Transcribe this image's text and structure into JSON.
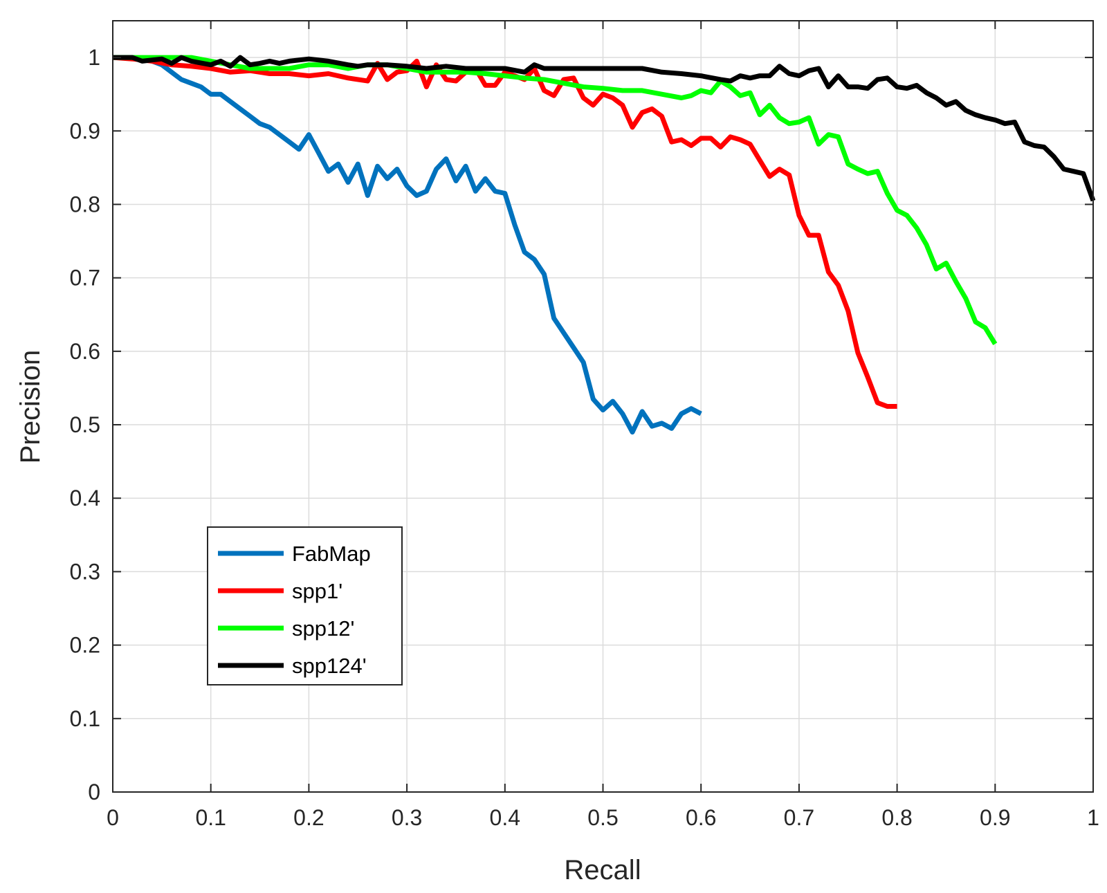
{
  "chart_data": {
    "type": "line",
    "title": "",
    "xlabel": "Recall",
    "ylabel": "Precision",
    "xlim": [
      0,
      1
    ],
    "ylim": [
      0,
      1.05
    ],
    "xticks": [
      0,
      0.1,
      0.2,
      0.3,
      0.4,
      0.5,
      0.6,
      0.7,
      0.8,
      0.9,
      1
    ],
    "xtick_labels": [
      "0",
      "0.1",
      "0.2",
      "0.3",
      "0.4",
      "0.5",
      "0.6",
      "0.7",
      "0.8",
      "0.9",
      "1"
    ],
    "yticks": [
      0,
      0.1,
      0.2,
      0.3,
      0.4,
      0.5,
      0.6,
      0.7,
      0.8,
      0.9,
      1
    ],
    "ytick_labels": [
      "0",
      "0.1",
      "0.2",
      "0.3",
      "0.4",
      "0.5",
      "0.6",
      "0.7",
      "0.8",
      "0.9",
      "1"
    ],
    "grid": true,
    "legend_position": "lower-left",
    "series": [
      {
        "name": "FabMap",
        "color": "#0072BD",
        "x": [
          0,
          0.02,
          0.04,
          0.05,
          0.06,
          0.07,
          0.08,
          0.09,
          0.1,
          0.11,
          0.12,
          0.13,
          0.14,
          0.15,
          0.16,
          0.17,
          0.18,
          0.19,
          0.2,
          0.21,
          0.22,
          0.23,
          0.24,
          0.25,
          0.26,
          0.27,
          0.28,
          0.29,
          0.3,
          0.31,
          0.32,
          0.33,
          0.34,
          0.35,
          0.36,
          0.37,
          0.38,
          0.39,
          0.4,
          0.41,
          0.42,
          0.43,
          0.44,
          0.45,
          0.46,
          0.47,
          0.48,
          0.49,
          0.5,
          0.51,
          0.52,
          0.53,
          0.54,
          0.55,
          0.56,
          0.57,
          0.58,
          0.59,
          0.6
        ],
        "y": [
          1.0,
          1.0,
          0.995,
          0.99,
          0.98,
          0.97,
          0.965,
          0.96,
          0.95,
          0.95,
          0.94,
          0.93,
          0.92,
          0.91,
          0.905,
          0.895,
          0.885,
          0.875,
          0.895,
          0.87,
          0.845,
          0.855,
          0.83,
          0.855,
          0.812,
          0.852,
          0.835,
          0.848,
          0.825,
          0.812,
          0.818,
          0.848,
          0.862,
          0.832,
          0.852,
          0.818,
          0.835,
          0.818,
          0.815,
          0.772,
          0.735,
          0.725,
          0.705,
          0.645,
          0.625,
          0.605,
          0.585,
          0.535,
          0.52,
          0.532,
          0.515,
          0.49,
          0.518,
          0.498,
          0.502,
          0.495,
          0.515,
          0.522,
          0.515
        ]
      },
      {
        "name": "spp1'",
        "color": "#FF0000",
        "x": [
          0,
          0.02,
          0.04,
          0.06,
          0.08,
          0.1,
          0.12,
          0.14,
          0.16,
          0.18,
          0.2,
          0.22,
          0.24,
          0.26,
          0.27,
          0.28,
          0.29,
          0.3,
          0.31,
          0.32,
          0.33,
          0.34,
          0.35,
          0.36,
          0.37,
          0.38,
          0.39,
          0.4,
          0.41,
          0.42,
          0.43,
          0.44,
          0.45,
          0.46,
          0.47,
          0.48,
          0.49,
          0.5,
          0.51,
          0.52,
          0.53,
          0.54,
          0.55,
          0.56,
          0.57,
          0.58,
          0.59,
          0.6,
          0.61,
          0.62,
          0.63,
          0.64,
          0.65,
          0.66,
          0.67,
          0.68,
          0.69,
          0.7,
          0.71,
          0.72,
          0.73,
          0.74,
          0.75,
          0.76,
          0.77,
          0.78,
          0.79,
          0.8
        ],
        "y": [
          1.0,
          0.998,
          0.995,
          0.99,
          0.988,
          0.985,
          0.98,
          0.982,
          0.978,
          0.978,
          0.975,
          0.978,
          0.972,
          0.968,
          0.992,
          0.97,
          0.98,
          0.982,
          0.995,
          0.96,
          0.99,
          0.97,
          0.968,
          0.98,
          0.985,
          0.962,
          0.962,
          0.98,
          0.975,
          0.97,
          0.985,
          0.955,
          0.948,
          0.97,
          0.972,
          0.945,
          0.935,
          0.95,
          0.945,
          0.935,
          0.905,
          0.925,
          0.93,
          0.92,
          0.885,
          0.888,
          0.88,
          0.89,
          0.89,
          0.878,
          0.892,
          0.888,
          0.882,
          0.86,
          0.838,
          0.848,
          0.84,
          0.785,
          0.758,
          0.758,
          0.708,
          0.69,
          0.655,
          0.598,
          0.565,
          0.53,
          0.525,
          0.525
        ]
      },
      {
        "name": "spp12'",
        "color": "#00FF00",
        "x": [
          0,
          0.05,
          0.08,
          0.1,
          0.12,
          0.14,
          0.16,
          0.18,
          0.2,
          0.22,
          0.24,
          0.26,
          0.28,
          0.3,
          0.32,
          0.34,
          0.36,
          0.38,
          0.4,
          0.42,
          0.44,
          0.46,
          0.48,
          0.5,
          0.52,
          0.54,
          0.56,
          0.58,
          0.59,
          0.6,
          0.61,
          0.62,
          0.63,
          0.64,
          0.65,
          0.66,
          0.67,
          0.68,
          0.69,
          0.7,
          0.71,
          0.72,
          0.73,
          0.74,
          0.75,
          0.76,
          0.77,
          0.78,
          0.79,
          0.8,
          0.81,
          0.82,
          0.83,
          0.84,
          0.85,
          0.86,
          0.87,
          0.88,
          0.89,
          0.9
        ],
        "y": [
          1.0,
          1.0,
          1.0,
          0.995,
          0.99,
          0.985,
          0.985,
          0.985,
          0.99,
          0.99,
          0.985,
          0.99,
          0.99,
          0.985,
          0.98,
          0.98,
          0.98,
          0.978,
          0.975,
          0.972,
          0.97,
          0.965,
          0.96,
          0.958,
          0.955,
          0.955,
          0.95,
          0.945,
          0.948,
          0.955,
          0.952,
          0.968,
          0.96,
          0.948,
          0.952,
          0.922,
          0.935,
          0.918,
          0.91,
          0.912,
          0.918,
          0.882,
          0.895,
          0.892,
          0.855,
          0.848,
          0.842,
          0.845,
          0.815,
          0.792,
          0.785,
          0.768,
          0.745,
          0.712,
          0.72,
          0.695,
          0.672,
          0.64,
          0.632,
          0.61
        ]
      },
      {
        "name": "spp124'",
        "color": "#000000",
        "x": [
          0,
          0.02,
          0.03,
          0.05,
          0.06,
          0.07,
          0.08,
          0.1,
          0.11,
          0.12,
          0.13,
          0.14,
          0.15,
          0.16,
          0.17,
          0.18,
          0.2,
          0.22,
          0.24,
          0.25,
          0.26,
          0.28,
          0.3,
          0.32,
          0.34,
          0.36,
          0.38,
          0.4,
          0.42,
          0.43,
          0.44,
          0.46,
          0.48,
          0.5,
          0.52,
          0.54,
          0.56,
          0.58,
          0.6,
          0.62,
          0.63,
          0.64,
          0.65,
          0.66,
          0.67,
          0.68,
          0.69,
          0.7,
          0.71,
          0.72,
          0.73,
          0.74,
          0.75,
          0.76,
          0.77,
          0.78,
          0.79,
          0.8,
          0.81,
          0.82,
          0.83,
          0.84,
          0.85,
          0.86,
          0.87,
          0.88,
          0.89,
          0.9,
          0.91,
          0.92,
          0.93,
          0.94,
          0.95,
          0.96,
          0.97,
          0.98,
          0.99,
          1.0
        ],
        "y": [
          1.0,
          1.0,
          0.995,
          0.998,
          0.992,
          1.0,
          0.995,
          0.99,
          0.995,
          0.988,
          1.0,
          0.99,
          0.992,
          0.995,
          0.992,
          0.995,
          0.998,
          0.995,
          0.99,
          0.988,
          0.99,
          0.99,
          0.988,
          0.985,
          0.988,
          0.985,
          0.985,
          0.985,
          0.98,
          0.99,
          0.985,
          0.985,
          0.985,
          0.985,
          0.985,
          0.985,
          0.98,
          0.978,
          0.975,
          0.97,
          0.968,
          0.975,
          0.972,
          0.975,
          0.975,
          0.988,
          0.978,
          0.975,
          0.982,
          0.985,
          0.96,
          0.975,
          0.96,
          0.96,
          0.958,
          0.97,
          0.972,
          0.96,
          0.958,
          0.962,
          0.952,
          0.945,
          0.935,
          0.94,
          0.928,
          0.922,
          0.918,
          0.915,
          0.91,
          0.912,
          0.885,
          0.88,
          0.878,
          0.865,
          0.848,
          0.845,
          0.842,
          0.805
        ]
      }
    ]
  }
}
